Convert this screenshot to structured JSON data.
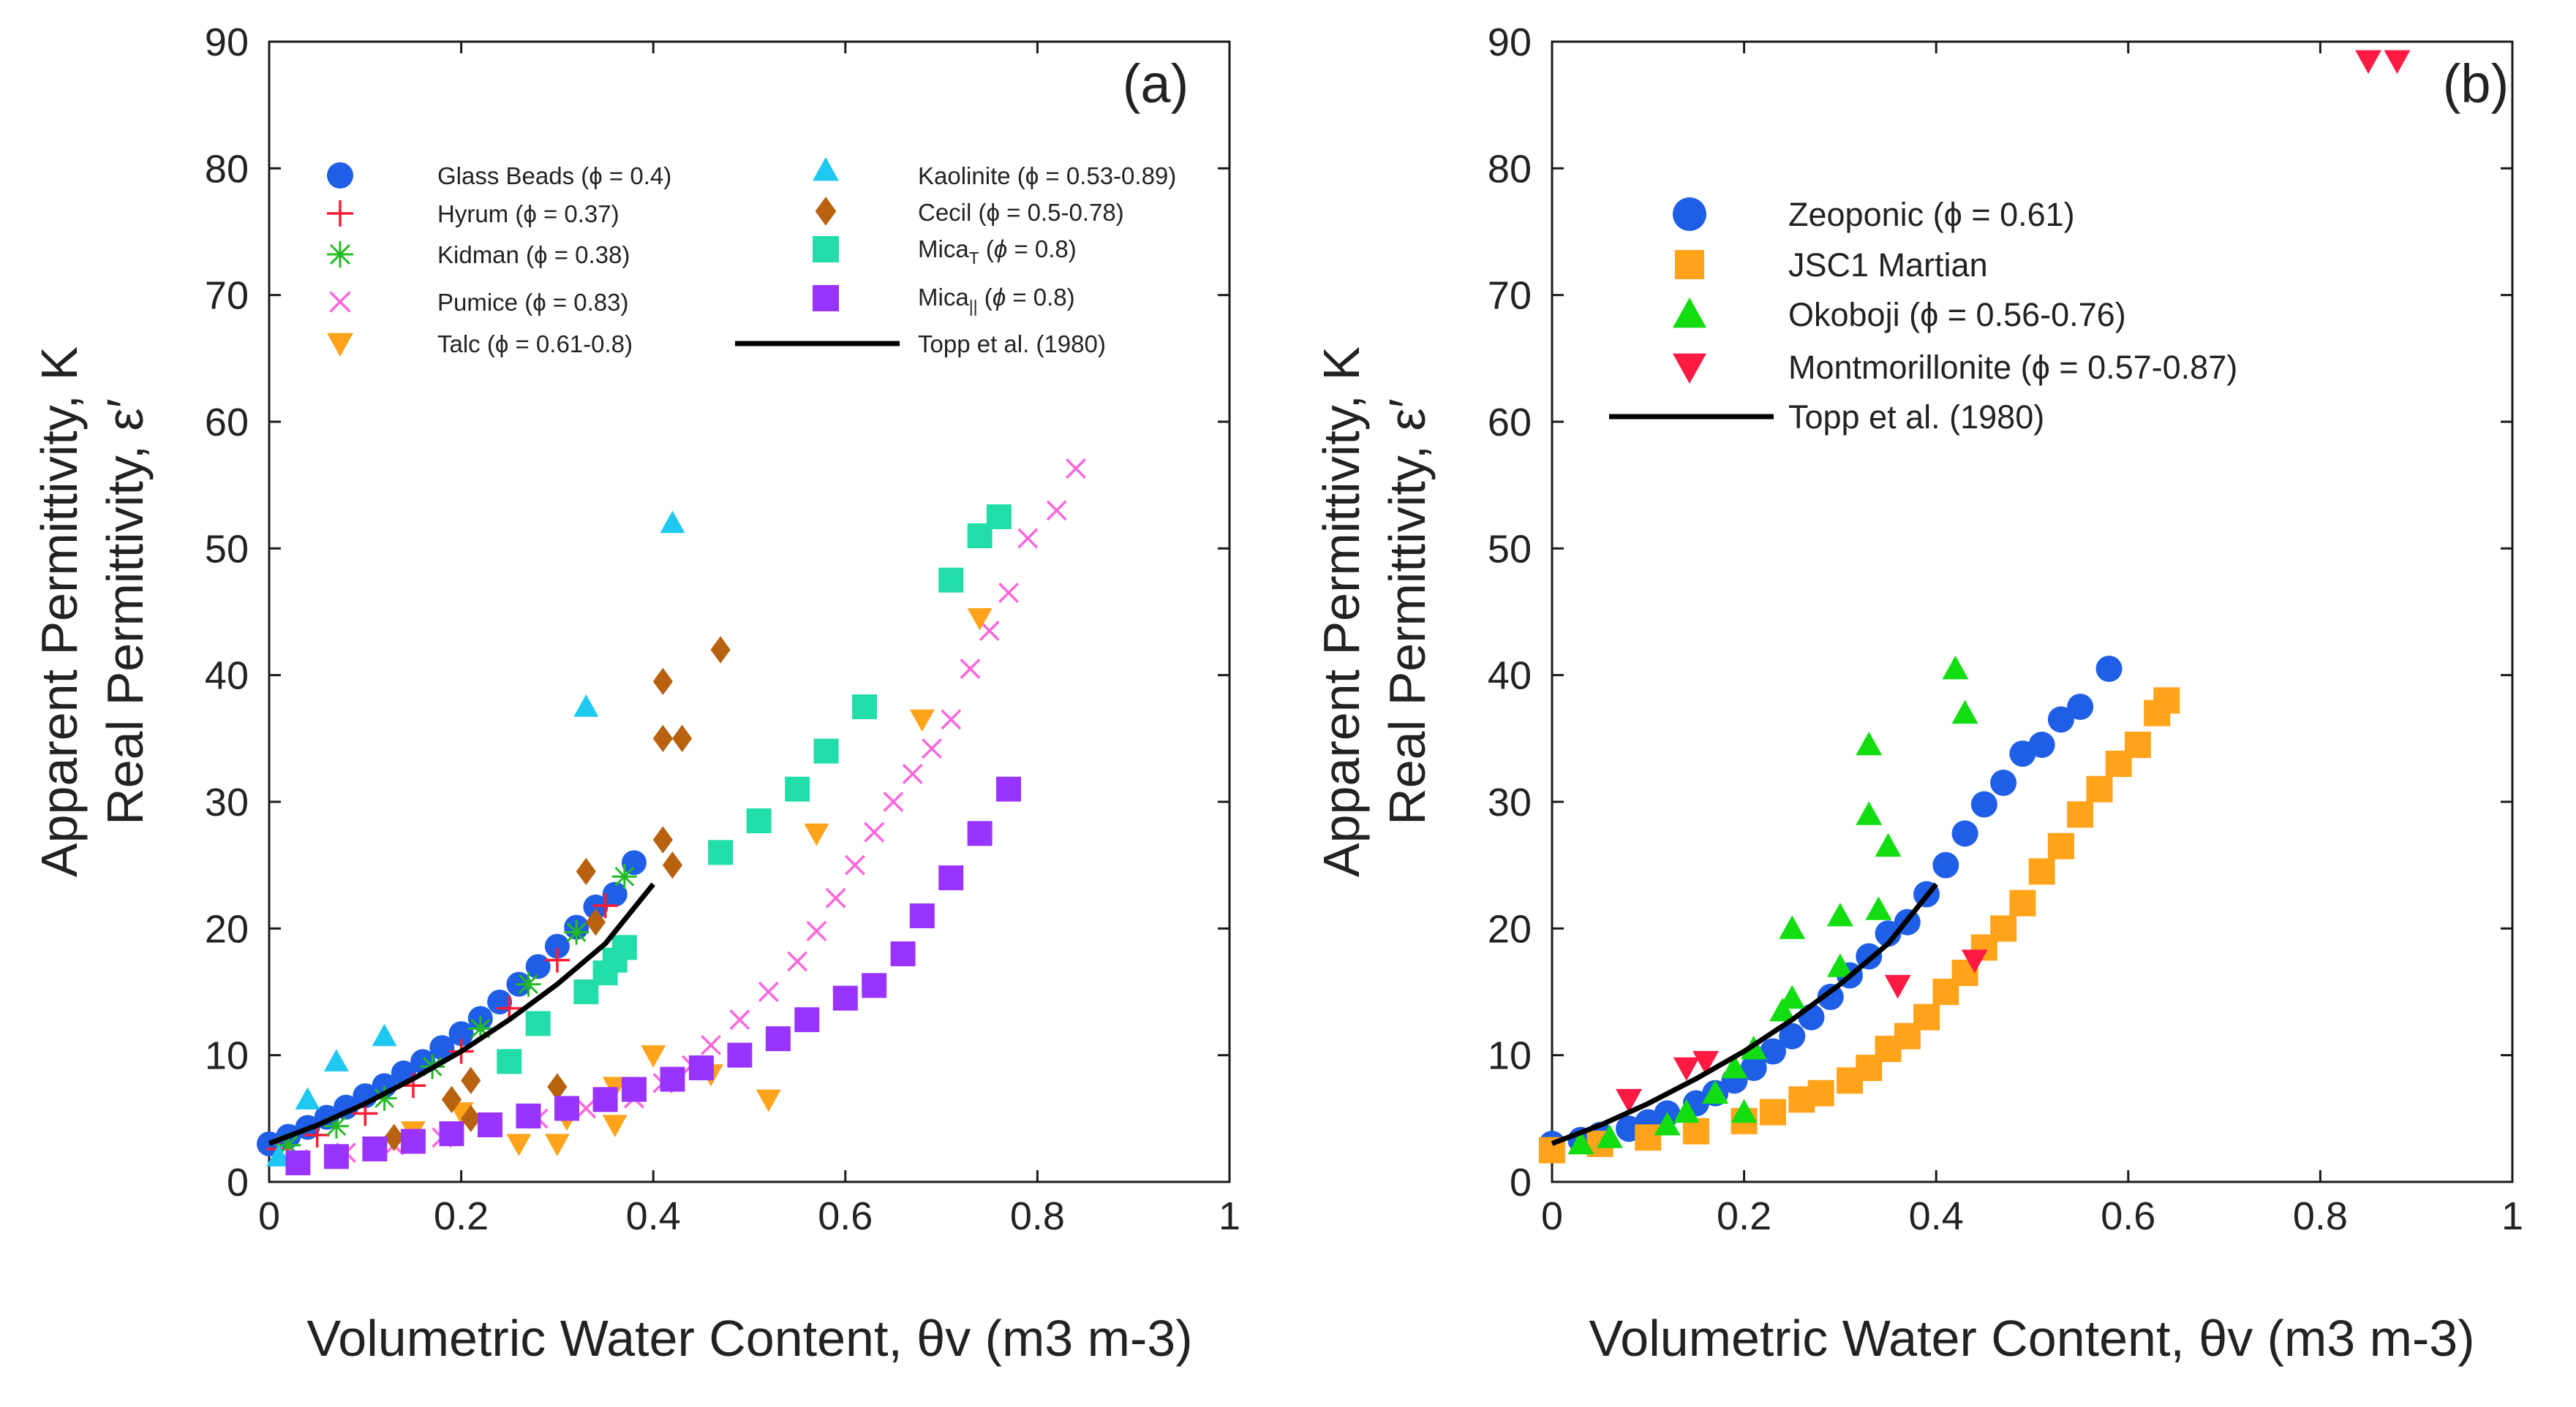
{
  "chart_data": [
    {
      "type": "scatter",
      "panel_label": "(a)",
      "ylabel_line1": "Apparent Permittivity,  K",
      "ylabel_line2": "Real Permittivity,  ε′",
      "xlabel": "Volumetric Water Content, θv (m3 m-3)",
      "xlim": [
        0,
        1
      ],
      "ylim": [
        0,
        90
      ],
      "xticks": [
        "0",
        "0.2",
        "0.4",
        "0.6",
        "0.8",
        "1"
      ],
      "yticks": [
        "0",
        "10",
        "20",
        "30",
        "40",
        "50",
        "60",
        "70",
        "80",
        "90"
      ],
      "legend_position": "top",
      "series": [
        {
          "name": "Glass Beads (ϕ = 0.4)",
          "marker": "circle",
          "color": "#1f5ee6",
          "x": [
            0.0,
            0.02,
            0.04,
            0.06,
            0.08,
            0.1,
            0.12,
            0.14,
            0.16,
            0.18,
            0.2,
            0.22,
            0.24,
            0.26,
            0.28,
            0.3,
            0.32,
            0.34,
            0.36,
            0.38
          ],
          "y": [
            3.0,
            3.6,
            4.3,
            5.1,
            5.9,
            6.8,
            7.6,
            8.6,
            9.5,
            10.6,
            11.7,
            12.9,
            14.2,
            15.6,
            17.0,
            18.6,
            20.1,
            21.7,
            22.7,
            25.2
          ]
        },
        {
          "name": "Hyrum (ϕ = 0.37)",
          "marker": "plus",
          "color": "#ff1a33",
          "x": [
            0.01,
            0.05,
            0.1,
            0.15,
            0.2,
            0.25,
            0.3,
            0.35
          ],
          "y": [
            2.6,
            3.7,
            5.4,
            7.6,
            10.3,
            13.7,
            17.5,
            21.8
          ]
        },
        {
          "name": "Kidman (ϕ = 0.38)",
          "marker": "asterisk",
          "color": "#22bb22",
          "x": [
            0.02,
            0.07,
            0.12,
            0.17,
            0.22,
            0.27,
            0.32,
            0.37
          ],
          "y": [
            2.9,
            4.4,
            6.6,
            9.1,
            12.1,
            15.6,
            19.7,
            24.1
          ]
        },
        {
          "name": "Pumice (ϕ = 0.83)",
          "marker": "cross",
          "color": "#ff66dd",
          "x": [
            0.03,
            0.08,
            0.13,
            0.18,
            0.23,
            0.28,
            0.33,
            0.38,
            0.41,
            0.44,
            0.46,
            0.49,
            0.52,
            0.55,
            0.57,
            0.59,
            0.61,
            0.63,
            0.65,
            0.67,
            0.69,
            0.71,
            0.73,
            0.75,
            0.77,
            0.79,
            0.82,
            0.84
          ],
          "y": [
            1.8,
            2.3,
            2.9,
            3.5,
            4.3,
            5.0,
            5.8,
            6.6,
            7.8,
            9.2,
            10.8,
            12.8,
            15.0,
            17.4,
            19.8,
            22.4,
            25.0,
            27.6,
            30.0,
            32.2,
            34.2,
            36.5,
            40.5,
            43.5,
            46.5,
            50.8,
            53.0,
            56.3
          ]
        },
        {
          "name": "Talc (ϕ = 0.61-0.8)",
          "marker": "triangle-down",
          "color": "#ffa31a",
          "x": [
            0.15,
            0.2,
            0.26,
            0.3,
            0.31,
            0.36,
            0.36,
            0.4,
            0.46,
            0.52,
            0.57,
            0.68,
            0.74
          ],
          "y": [
            4.0,
            5.5,
            3.0,
            3.0,
            5.0,
            7.5,
            4.5,
            10.0,
            8.5,
            6.5,
            27.5,
            36.5,
            44.5
          ]
        },
        {
          "name": "Kaolinite (ϕ = 0.53-0.89)",
          "marker": "triangle-up",
          "color": "#1ec8f0",
          "x": [
            0.01,
            0.04,
            0.07,
            0.12,
            0.33,
            0.42
          ],
          "y": [
            2.0,
            6.5,
            9.5,
            11.5,
            37.5,
            52.0
          ]
        },
        {
          "name": "Cecil (ϕ = 0.5-0.78)",
          "marker": "diamond",
          "color": "#b8620f",
          "x": [
            0.13,
            0.19,
            0.21,
            0.21,
            0.3,
            0.33,
            0.34,
            0.41,
            0.41,
            0.41,
            0.42,
            0.43,
            0.47
          ],
          "y": [
            3.5,
            6.5,
            8.0,
            5.0,
            7.5,
            24.5,
            20.5,
            27.0,
            39.5,
            35.0,
            25.0,
            35.0,
            42.0
          ]
        },
        {
          "name": "MicaT (ϕ = 0.8)",
          "marker": "square",
          "color": "#22ddaa",
          "x": [
            0.25,
            0.28,
            0.33,
            0.35,
            0.36,
            0.37,
            0.47,
            0.51,
            0.55,
            0.58,
            0.62,
            0.71,
            0.74,
            0.76
          ],
          "y": [
            9.5,
            12.5,
            15.0,
            16.5,
            17.5,
            18.5,
            26.0,
            28.5,
            31.0,
            34.0,
            37.5,
            47.5,
            51.0,
            52.5
          ]
        },
        {
          "name": "Mica|| (ϕ = 0.8)",
          "marker": "square",
          "color": "#9933ff",
          "x": [
            0.03,
            0.07,
            0.11,
            0.15,
            0.19,
            0.23,
            0.27,
            0.31,
            0.35,
            0.38,
            0.42,
            0.45,
            0.49,
            0.53,
            0.56,
            0.6,
            0.63,
            0.66,
            0.68,
            0.71,
            0.74,
            0.77
          ],
          "y": [
            1.5,
            2.0,
            2.6,
            3.2,
            3.8,
            4.5,
            5.2,
            5.8,
            6.5,
            7.3,
            8.1,
            9.0,
            10.0,
            11.3,
            12.8,
            14.5,
            15.5,
            18.0,
            21.0,
            24.0,
            27.5,
            31.0
          ]
        },
        {
          "name": "Topp et al. (1980)",
          "marker": "line",
          "color": "#000000",
          "x": [
            0.0,
            0.05,
            0.1,
            0.15,
            0.2,
            0.25,
            0.3,
            0.35,
            0.4
          ],
          "y": [
            3.03,
            4.47,
            6.18,
            8.14,
            10.3,
            12.8,
            15.6,
            18.8,
            23.5
          ]
        }
      ]
    },
    {
      "type": "scatter",
      "panel_label": "(b)",
      "ylabel_line1": "Apparent Permittivity,  K",
      "ylabel_line2": "Real Permittivity,  ε′",
      "xlabel": "Volumetric Water Content, θv (m3 m-3)",
      "xlim": [
        0,
        1
      ],
      "ylim": [
        0,
        90
      ],
      "xticks": [
        "0",
        "0.2",
        "0.4",
        "0.6",
        "0.8",
        "1"
      ],
      "yticks": [
        "0",
        "10",
        "20",
        "30",
        "40",
        "50",
        "60",
        "70",
        "80",
        "90"
      ],
      "legend_position": "top-left",
      "series": [
        {
          "name": "Zeoponic (ϕ = 0.61)",
          "marker": "circle",
          "color": "#1f5ee6",
          "x": [
            0.0,
            0.03,
            0.05,
            0.08,
            0.1,
            0.12,
            0.15,
            0.17,
            0.19,
            0.21,
            0.23,
            0.25,
            0.27,
            0.29,
            0.31,
            0.33,
            0.35,
            0.37,
            0.39,
            0.41,
            0.43,
            0.45,
            0.47,
            0.49,
            0.51,
            0.53,
            0.55,
            0.58
          ],
          "y": [
            3.0,
            3.3,
            3.7,
            4.2,
            4.7,
            5.4,
            6.2,
            7.0,
            8.0,
            9.0,
            10.3,
            11.5,
            13.0,
            14.6,
            16.3,
            17.8,
            19.6,
            20.5,
            22.7,
            25.0,
            27.5,
            29.8,
            31.5,
            33.8,
            34.5,
            36.5,
            37.5,
            40.5
          ]
        },
        {
          "name": "JSC1 Martian",
          "marker": "square",
          "color": "#ffa31a",
          "x": [
            0.0,
            0.05,
            0.1,
            0.15,
            0.2,
            0.23,
            0.26,
            0.28,
            0.31,
            0.33,
            0.35,
            0.37,
            0.39,
            0.41,
            0.43,
            0.45,
            0.47,
            0.49,
            0.51,
            0.53,
            0.55,
            0.57,
            0.59,
            0.61,
            0.63,
            0.64
          ],
          "y": [
            2.5,
            3.0,
            3.5,
            4.0,
            4.8,
            5.5,
            6.5,
            7.0,
            8.0,
            9.0,
            10.5,
            11.5,
            13.0,
            15.0,
            16.5,
            18.5,
            20.0,
            22.0,
            24.5,
            26.5,
            29.0,
            31.0,
            33.0,
            34.5,
            37.0,
            38.0
          ]
        },
        {
          "name": "Okoboji (ϕ = 0.56-0.76)",
          "marker": "triangle-up",
          "color": "#11dd11",
          "x": [
            0.03,
            0.06,
            0.12,
            0.14,
            0.17,
            0.19,
            0.2,
            0.21,
            0.24,
            0.25,
            0.25,
            0.3,
            0.3,
            0.33,
            0.33,
            0.34,
            0.35,
            0.42,
            0.43
          ],
          "y": [
            3.0,
            3.5,
            4.5,
            5.5,
            7.0,
            9.0,
            5.5,
            10.5,
            13.5,
            20.0,
            14.5,
            21.0,
            17.0,
            29.0,
            34.5,
            21.5,
            26.5,
            40.5,
            37.0
          ]
        },
        {
          "name": "Montmorillonite (ϕ = 0.57-0.87)",
          "marker": "triangle-down",
          "color": "#ff1a44",
          "x": [
            0.08,
            0.14,
            0.16,
            0.36,
            0.44,
            0.85,
            0.88
          ],
          "y": [
            6.5,
            9.0,
            9.5,
            15.5,
            17.5,
            88.5,
            88.5
          ]
        },
        {
          "name": "Topp et al. (1980)",
          "marker": "line",
          "color": "#000000",
          "x": [
            0.0,
            0.05,
            0.1,
            0.15,
            0.2,
            0.25,
            0.3,
            0.35,
            0.4
          ],
          "y": [
            3.03,
            4.47,
            6.18,
            8.14,
            10.3,
            12.8,
            15.6,
            18.8,
            23.5
          ]
        }
      ]
    }
  ]
}
